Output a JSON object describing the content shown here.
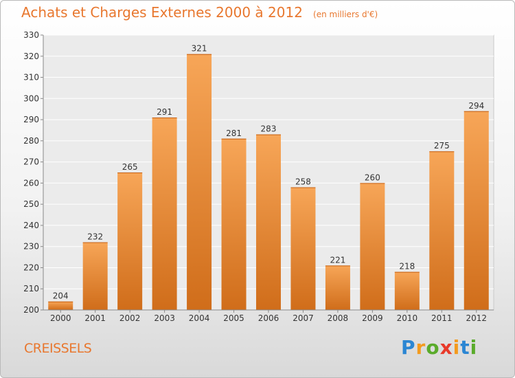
{
  "title": "Achats et Charges Externes 2000 à 2012",
  "unit": "(en milliers d'€)",
  "commune": "CREISSELS",
  "logo": {
    "text": "Proxiti",
    "letters": [
      "P",
      "r",
      "o",
      "x",
      "i",
      "t",
      "i"
    ]
  },
  "colors": {
    "accent": "#e8772e",
    "bar_top": "#f7a658",
    "bar_bottom": "#d06d1a"
  },
  "chart_data": {
    "type": "bar",
    "title": "Achats et Charges Externes 2000 à 2012",
    "xlabel": "",
    "ylabel": "",
    "categories": [
      "2000",
      "2001",
      "2002",
      "2003",
      "2004",
      "2005",
      "2006",
      "2007",
      "2008",
      "2009",
      "2010",
      "2011",
      "2012"
    ],
    "values": [
      204,
      232,
      265,
      291,
      321,
      281,
      283,
      258,
      221,
      260,
      218,
      275,
      294
    ],
    "ylim": [
      200,
      330
    ],
    "yticks": [
      200,
      210,
      220,
      230,
      240,
      250,
      260,
      270,
      280,
      290,
      300,
      310,
      320,
      330
    ],
    "grid": true
  }
}
